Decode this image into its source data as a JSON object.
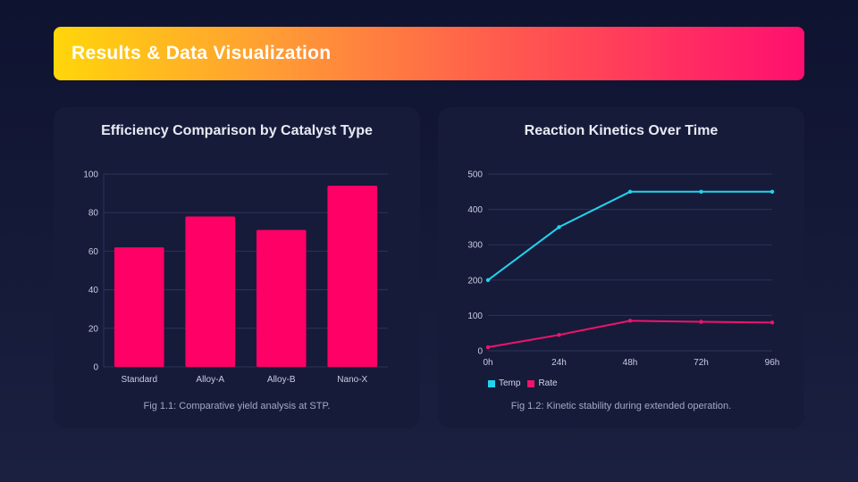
{
  "header": {
    "title": "Results & Data Visualization"
  },
  "colors": {
    "bar": "#ff0066",
    "temp": "#22d3ee",
    "rate": "#f0136c",
    "grid": "#2b3358",
    "tick": "#c9cce0"
  },
  "chart_data": [
    {
      "type": "bar",
      "title": "Efficiency Comparison by Catalyst Type",
      "caption": "Fig 1.1: Comparative yield analysis at STP.",
      "categories": [
        "Standard",
        "Alloy-A",
        "Alloy-B",
        "Nano-X"
      ],
      "values": [
        62,
        78,
        71,
        94
      ],
      "ylim": [
        0,
        100
      ],
      "yticks": [
        0,
        20,
        40,
        60,
        80,
        100
      ],
      "xlabel": "",
      "ylabel": "",
      "grid": true
    },
    {
      "type": "line",
      "title": "Reaction Kinetics Over Time",
      "caption": "Fig 1.2: Kinetic stability during extended operation.",
      "x": [
        "0h",
        "24h",
        "48h",
        "72h",
        "96h"
      ],
      "series": [
        {
          "name": "Temp",
          "values": [
            200,
            350,
            450,
            450,
            450
          ]
        },
        {
          "name": "Rate",
          "values": [
            10,
            45,
            85,
            82,
            80
          ]
        }
      ],
      "ylim": [
        0,
        500
      ],
      "yticks": [
        0,
        100,
        200,
        300,
        400,
        500
      ],
      "legend": "bottom-left",
      "grid": true
    }
  ]
}
